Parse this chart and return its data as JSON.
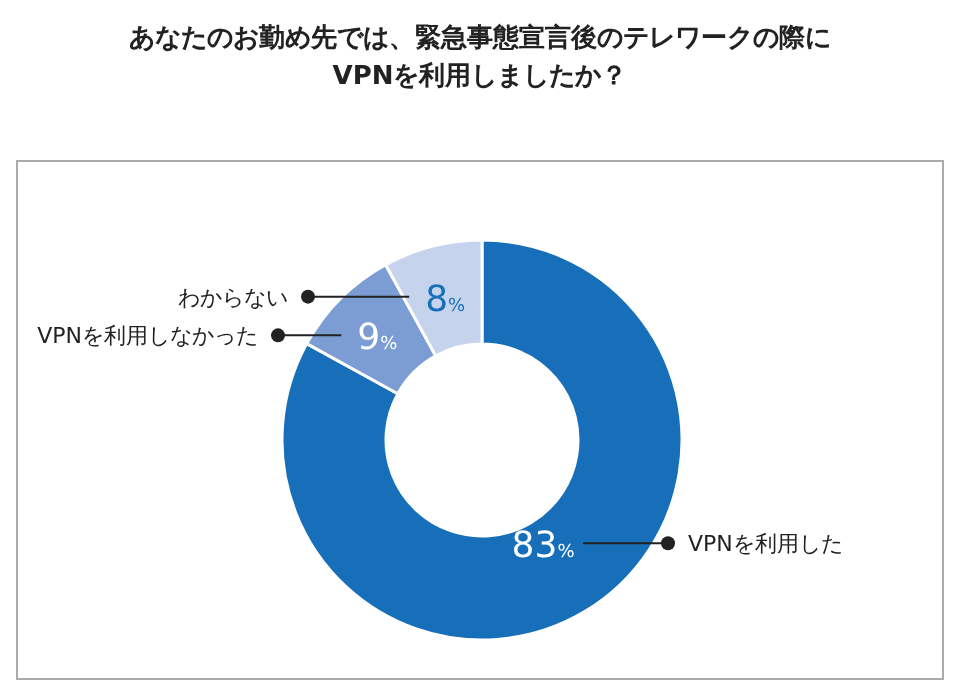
{
  "chart_data": {
    "type": "donut",
    "title": "あなたのお勤め先では、緊急事態宣言後のテレワークの際に\nVPNを利用しましたか？",
    "categories": [
      "VPNを利用した",
      "VPNを利用しなかった",
      "わからない"
    ],
    "values": [
      83,
      9,
      8
    ],
    "colors": [
      "#186fb9",
      "#7b9dd3",
      "#c6d3ec"
    ],
    "value_labels": [
      "83%",
      "9%",
      "8%"
    ]
  }
}
